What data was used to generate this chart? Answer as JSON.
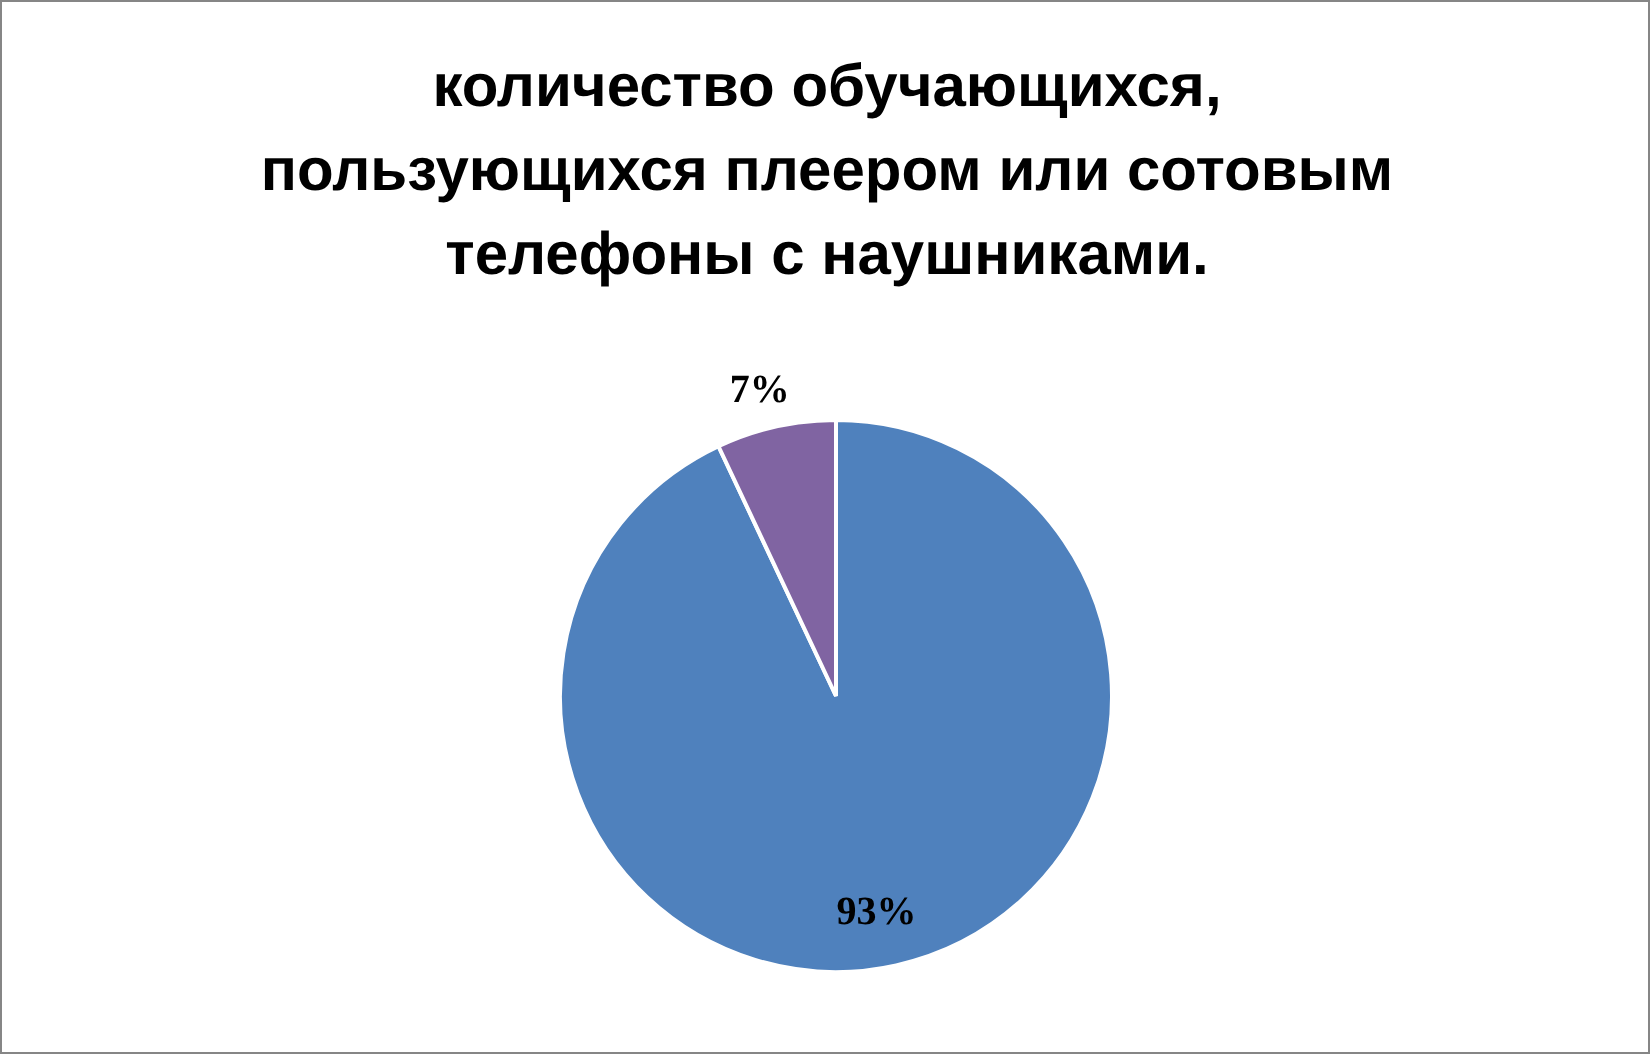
{
  "chart_data": {
    "type": "pie",
    "title": "количество обучающихся, пользующихся плеером или сотовым телефоны с наушниками.",
    "categories": [
      null,
      null
    ],
    "values": [
      93,
      7
    ],
    "colors": [
      "#4f81bd",
      "#8064a2"
    ],
    "value_labels": [
      "93%",
      "7%"
    ]
  }
}
